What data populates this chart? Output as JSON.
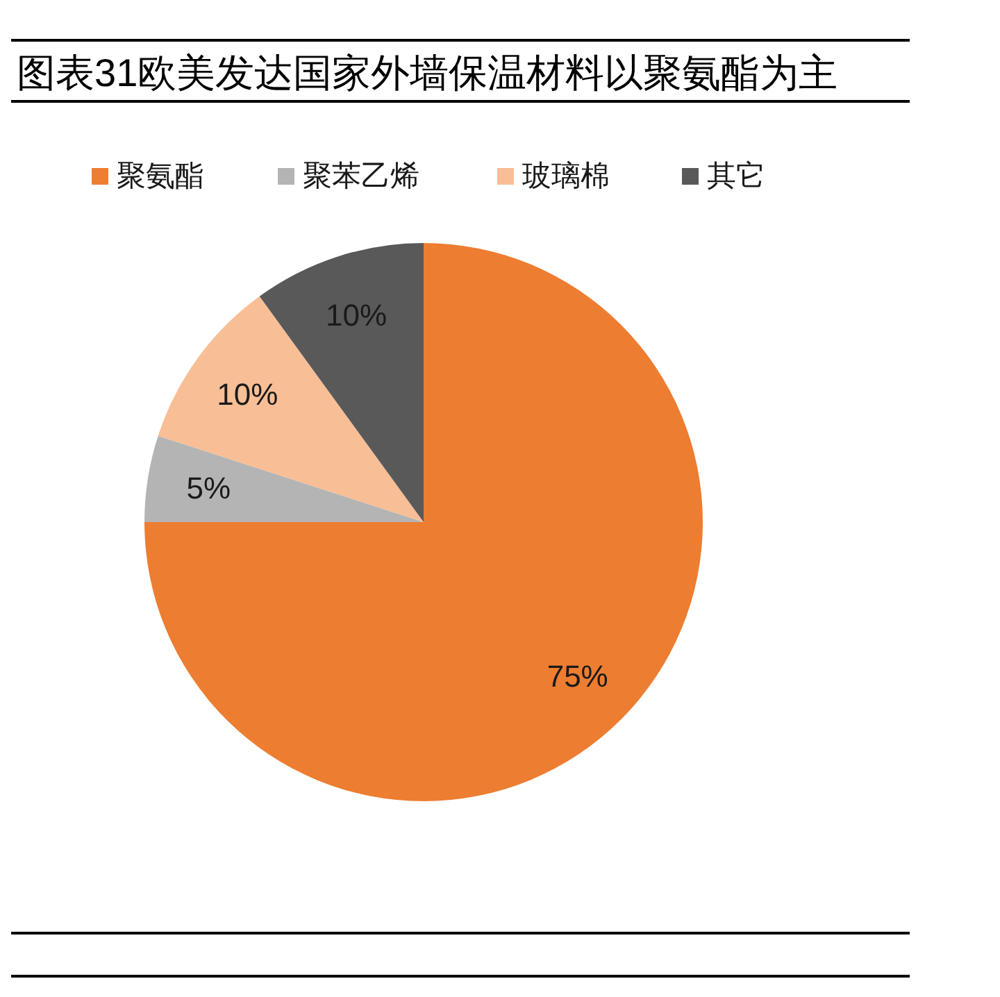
{
  "chart_data": {
    "type": "pie",
    "title": "图表31欧美发达国家外墙保温材料以聚氨酯为主",
    "categories": [
      "聚氨酯",
      "聚苯乙烯",
      "玻璃棉",
      "其它"
    ],
    "values": [
      75,
      5,
      10,
      10
    ],
    "value_labels": [
      "75%",
      "5%",
      "10%",
      "10%"
    ],
    "colors": [
      "#ed7d31",
      "#b4b4b4",
      "#f8be96",
      "#595959"
    ],
    "legend": "top"
  }
}
